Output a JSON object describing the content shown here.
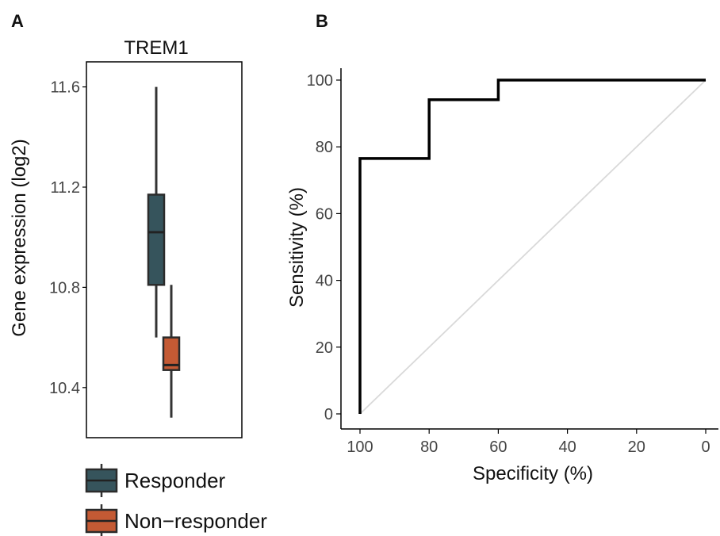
{
  "panels": {
    "a_letter": "A",
    "b_letter": "B"
  },
  "chart_data": [
    {
      "type": "box",
      "title": "TREM1",
      "ylabel": "Gene expression (log2)",
      "xlabel": "",
      "ylim": [
        10.2,
        11.7
      ],
      "yticks": [
        10.4,
        10.8,
        11.2,
        11.6
      ],
      "ytick_labels": [
        "10.4",
        "10.8",
        "11.2",
        "11.6"
      ],
      "legend": "bottom",
      "series": [
        {
          "name": "Responder",
          "color": "#36545c",
          "min": 10.6,
          "q1": 10.81,
          "median": 11.02,
          "q3": 11.17,
          "max": 11.6
        },
        {
          "name": "Non−responder",
          "color": "#c45a34",
          "min": 10.28,
          "q1": 10.47,
          "median": 10.49,
          "q3": 10.6,
          "max": 10.81
        }
      ]
    },
    {
      "type": "line",
      "xlabel": "Specificity (%)",
      "ylabel": "Sensitivity (%)",
      "xlim": [
        100,
        0
      ],
      "ylim": [
        0,
        100
      ],
      "xticks": [
        100,
        80,
        60,
        40,
        20,
        0
      ],
      "xtick_labels": [
        "100",
        "80",
        "60",
        "40",
        "20",
        "0"
      ],
      "yticks": [
        0,
        20,
        40,
        60,
        80,
        100
      ],
      "ytick_labels": [
        "0",
        "20",
        "40",
        "60",
        "80",
        "100"
      ],
      "series": [
        {
          "color": "#000000",
          "x": [
            100,
            100,
            80,
            80,
            60,
            60,
            0
          ],
          "y": [
            0,
            76.5,
            76.5,
            94.1,
            94.1,
            100,
            100
          ]
        },
        {
          "color": "#d9d9d9",
          "x": [
            100,
            0
          ],
          "y": [
            0,
            100
          ]
        }
      ]
    }
  ]
}
